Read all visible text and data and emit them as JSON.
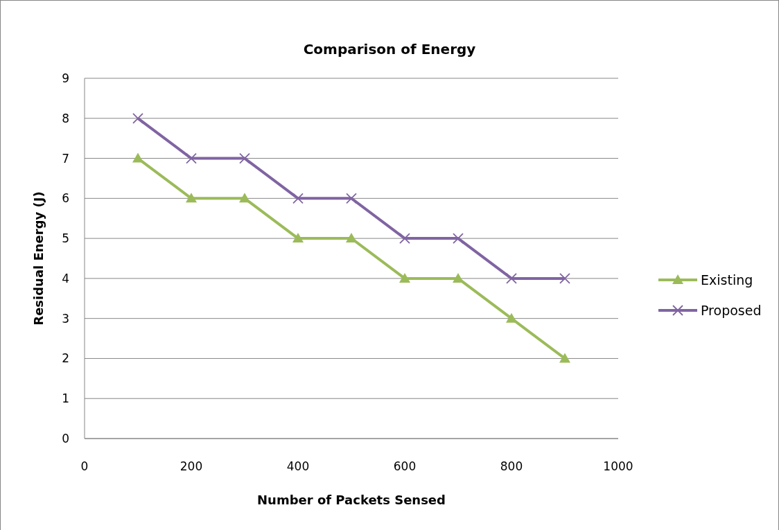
{
  "chart_data": {
    "type": "line",
    "title": "Comparison of Energy",
    "xlabel": "Number of Packets Sensed",
    "ylabel": "Residual Energy (J)",
    "x": [
      100,
      200,
      300,
      400,
      500,
      600,
      700,
      800,
      900
    ],
    "series": [
      {
        "name": "Existing",
        "color": "#9bbb59",
        "marker": "triangle",
        "values": [
          7,
          6,
          6,
          5,
          5,
          4,
          4,
          3,
          2
        ]
      },
      {
        "name": "Proposed",
        "color": "#8064a2",
        "marker": "cross",
        "values": [
          8,
          7,
          7,
          6,
          6,
          5,
          5,
          4,
          4
        ]
      }
    ],
    "xlim": [
      0,
      1000
    ],
    "xticks": [
      0,
      200,
      400,
      600,
      800,
      1000
    ],
    "ylim": [
      0,
      9
    ],
    "yticks": [
      0,
      1,
      2,
      3,
      4,
      5,
      6,
      7,
      8,
      9
    ],
    "grid": "y",
    "legend": "right",
    "line_style": "solid"
  }
}
